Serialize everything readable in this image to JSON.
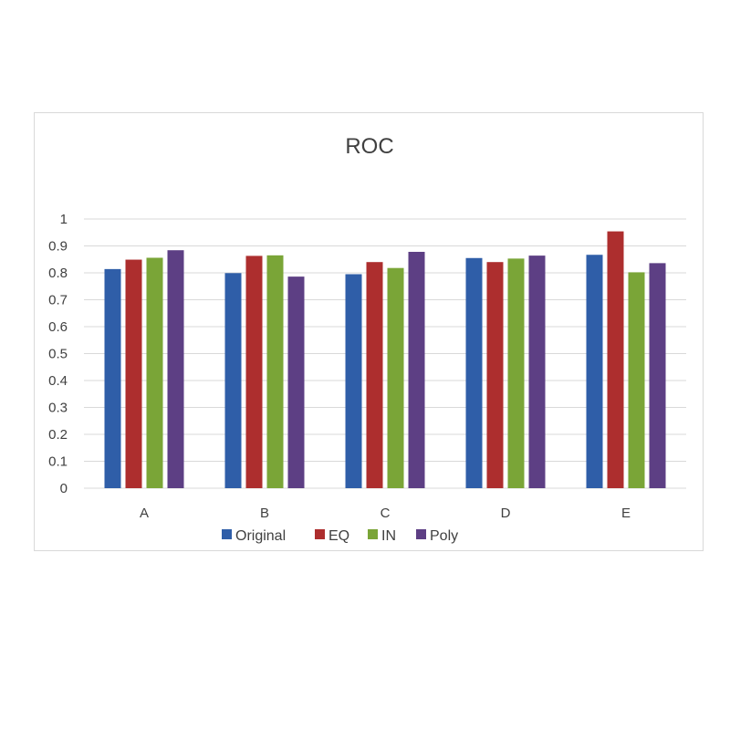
{
  "chart_data": {
    "type": "bar",
    "title": "ROC",
    "xlabel": "",
    "ylabel": "",
    "ylim": [
      0,
      1
    ],
    "yticks": [
      "0",
      "0.1",
      "0.2",
      "0.3",
      "0.4",
      "0.5",
      "0.6",
      "0.7",
      "0.8",
      "0.9",
      "1"
    ],
    "grid": true,
    "legend_position": "bottom",
    "categories": [
      "A",
      "B",
      "C",
      "D",
      "E"
    ],
    "series": [
      {
        "name": "Original",
        "color": "#2f5ea8",
        "values": [
          0.814,
          0.799,
          0.795,
          0.855,
          0.867
        ]
      },
      {
        "name": "EQ",
        "color": "#ad2e2e",
        "values": [
          0.849,
          0.863,
          0.84,
          0.84,
          0.954
        ]
      },
      {
        "name": "IN",
        "color": "#7aa537",
        "values": [
          0.856,
          0.865,
          0.818,
          0.853,
          0.802
        ]
      },
      {
        "name": "Poly",
        "color": "#5d3f84",
        "values": [
          0.884,
          0.786,
          0.878,
          0.864,
          0.836
        ]
      }
    ]
  }
}
